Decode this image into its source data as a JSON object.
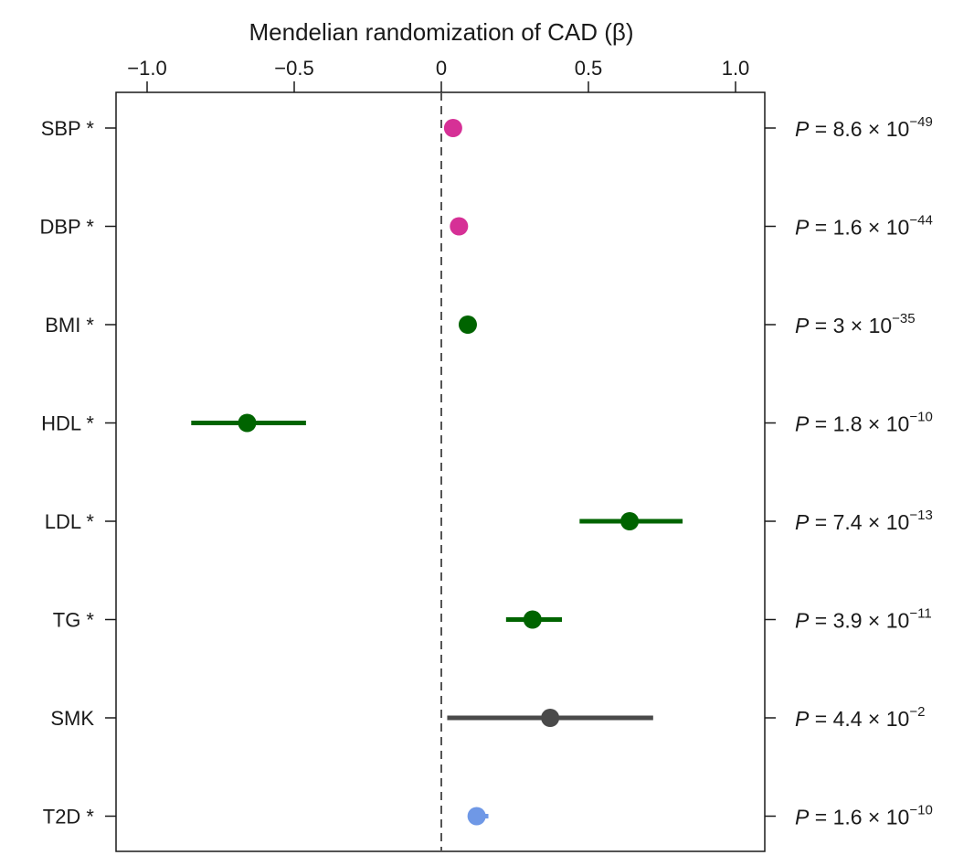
{
  "chart_data": {
    "type": "forest",
    "title": "",
    "xlabel": "Mendelian randomization of CAD (β)",
    "xlim": [
      -1.1,
      1.1
    ],
    "xticks": [
      -1.0,
      -0.5,
      0,
      0.5,
      1.0
    ],
    "xtick_labels": [
      "−1.0",
      "−0.5",
      "0",
      "0.5",
      "1.0"
    ],
    "reference_line": {
      "x": 0,
      "style": "dashed"
    },
    "grid": false,
    "rows": [
      {
        "label": "SBP *",
        "beta": 0.04,
        "ci": [
          0.03,
          0.05
        ],
        "color": "#d63096",
        "p_mantissa": "8.6",
        "p_exponent": "−49"
      },
      {
        "label": "DBP *",
        "beta": 0.06,
        "ci": [
          0.05,
          0.07
        ],
        "color": "#d63096",
        "p_mantissa": "1.6",
        "p_exponent": "−44"
      },
      {
        "label": "BMI *",
        "beta": 0.09,
        "ci": [
          0.08,
          0.1
        ],
        "color": "#006400",
        "p_mantissa": "3",
        "p_exponent": "−35"
      },
      {
        "label": "HDL *",
        "beta": -0.66,
        "ci": [
          -0.85,
          -0.46
        ],
        "color": "#006400",
        "p_mantissa": "1.8",
        "p_exponent": "−10"
      },
      {
        "label": "LDL *",
        "beta": 0.64,
        "ci": [
          0.47,
          0.82
        ],
        "color": "#006400",
        "p_mantissa": "7.4",
        "p_exponent": "−13"
      },
      {
        "label": "TG *",
        "beta": 0.31,
        "ci": [
          0.22,
          0.41
        ],
        "color": "#006400",
        "p_mantissa": "3.9",
        "p_exponent": "−11"
      },
      {
        "label": "SMK",
        "beta": 0.37,
        "ci": [
          0.02,
          0.72
        ],
        "color": "#4a4a4a",
        "p_mantissa": "4.4",
        "p_exponent": "−2"
      },
      {
        "label": "T2D *",
        "beta": 0.12,
        "ci": [
          0.09,
          0.16
        ],
        "color": "#6f98e6",
        "p_mantissa": "1.6",
        "p_exponent": "−10"
      }
    ],
    "p_prefix": "P",
    "p_equals": " = ",
    "p_times": " × 10"
  }
}
